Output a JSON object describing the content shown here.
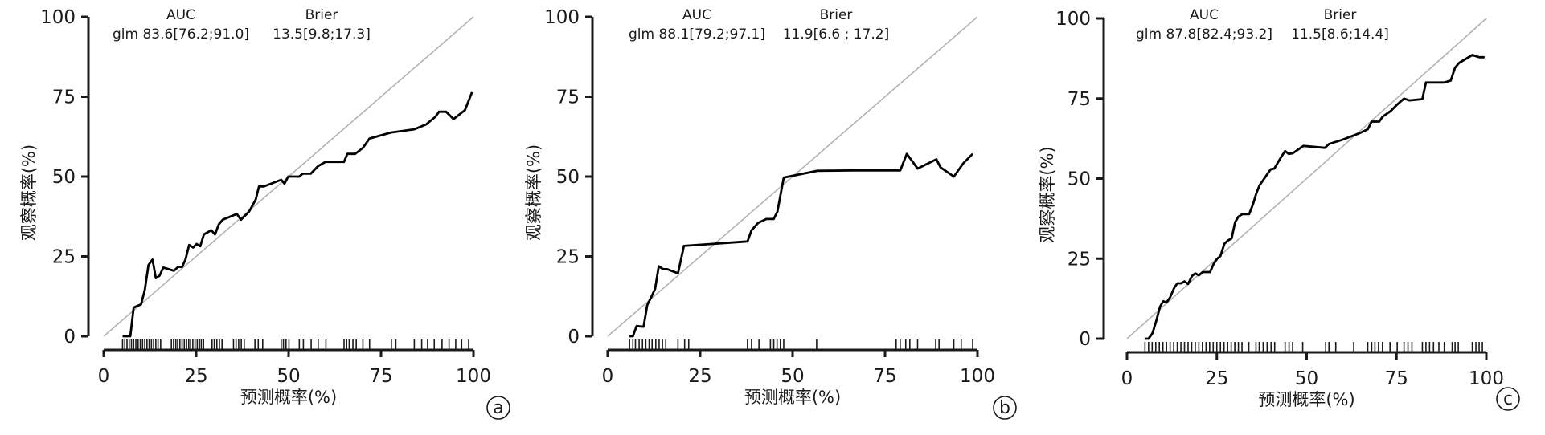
{
  "chart_data": [
    {
      "type": "line",
      "panel_label": "a",
      "xlabel": "预测概率(%)",
      "ylabel": "观察概率(%)",
      "xlim": [
        0,
        100
      ],
      "ylim": [
        0,
        100
      ],
      "xticks": [
        "0",
        "25",
        "50",
        "75",
        "100"
      ],
      "yticks": [
        "0",
        "25",
        "50",
        "75",
        "100"
      ],
      "grid": false,
      "reference_line": {
        "from": [
          0,
          0
        ],
        "to": [
          100,
          100
        ],
        "color": "#b3b3b3"
      },
      "annotation": {
        "auc_header": "AUC",
        "auc_text": "glm 83.6[76.2;91.0]",
        "brier_header": "Brier",
        "brier_text": "13.5[9.8;17.3]"
      },
      "series": [
        {
          "color": "#000000",
          "x": [
            5.1,
            7.2,
            8.1,
            10.1,
            11.1,
            12.1,
            13.2,
            14.1,
            15.1,
            16.1,
            19,
            20.1,
            21.2,
            22.1,
            23.1,
            24.2,
            25.1,
            26.1,
            27.1,
            29.1,
            30.1,
            31.1,
            32.2,
            36,
            37.1,
            39.3,
            41.1,
            42,
            43.3,
            48,
            48.9,
            49.9,
            52.9,
            53.8,
            56,
            58,
            60,
            65,
            65.9,
            68,
            70.1,
            71.9,
            77.7,
            84,
            87.2,
            89.7,
            90.7,
            92.6,
            94.6,
            97.7,
            99.6
          ],
          "y": [
            0,
            0,
            9,
            10,
            14.5,
            22.3,
            24,
            18.2,
            19,
            21.5,
            20.5,
            21.7,
            21.7,
            24,
            28.6,
            27.8,
            28.9,
            28.2,
            31.9,
            33.2,
            31.9,
            35,
            36.5,
            38.3,
            36.5,
            39,
            42.8,
            46.9,
            46.9,
            49,
            47.8,
            50,
            50,
            50.9,
            50.9,
            53.3,
            54.6,
            54.6,
            57.1,
            57.1,
            59,
            61.9,
            63.8,
            64.8,
            66.3,
            68.7,
            70.3,
            70.3,
            68,
            70.8,
            76.4
          ]
        }
      ],
      "rug": [
        5.1,
        5.7,
        6.3,
        6.9,
        7.5,
        8.1,
        8.7,
        9.3,
        9.9,
        10.5,
        11.1,
        11.7,
        12.3,
        12.9,
        13.5,
        14.1,
        14.7,
        15.4,
        18.3,
        18.9,
        19.5,
        20,
        20.6,
        21.2,
        21.8,
        22.4,
        23,
        23.5,
        24.1,
        24.7,
        25.3,
        25.9,
        26.4,
        27,
        29.3,
        29.9,
        30.6,
        31.3,
        32,
        35.1,
        35.8,
        36.5,
        37.2,
        38,
        40.9,
        41.8,
        43,
        48,
        48.6,
        49.3,
        50.1,
        52.9,
        54,
        56.1,
        58,
        60.1,
        65,
        65.7,
        66.4,
        67.4,
        68.3,
        70.1,
        71.9,
        77.8,
        79,
        84,
        86,
        87.6,
        89.4,
        91.5,
        93.4,
        95.2,
        96.8,
        98.7
      ]
    },
    {
      "type": "line",
      "panel_label": "b",
      "xlabel": "预测概率(%)",
      "ylabel": "观察概率(%)",
      "xlim": [
        0,
        100
      ],
      "ylim": [
        0,
        100
      ],
      "xticks": [
        "0",
        "25",
        "50",
        "75",
        "100"
      ],
      "yticks": [
        "0",
        "25",
        "50",
        "75",
        "100"
      ],
      "grid": false,
      "reference_line": {
        "from": [
          0,
          0
        ],
        "to": [
          100,
          100
        ],
        "color": "#b3b3b3"
      },
      "annotation": {
        "auc_header": "AUC",
        "auc_text": "glm 88.1[79.2;97.1]",
        "brier_header": "Brier",
        "brier_text": "11.9[6.6 ; 17.2]"
      },
      "series": [
        {
          "color": "#000000",
          "x": [
            5.9,
            6.8,
            7.8,
            9.7,
            10.7,
            11.6,
            12.8,
            13.8,
            15,
            16.1,
            19,
            20.6,
            37.8,
            38.9,
            40.7,
            42.9,
            44.9,
            45.9,
            47.6,
            56.7,
            66.1,
            79.1,
            80.9,
            83.8,
            88.9,
            90,
            93.6,
            96.2,
            98.7
          ],
          "y": [
            0,
            0,
            3.2,
            3,
            9.8,
            11.9,
            14.8,
            21.9,
            21,
            21,
            19.7,
            28.3,
            29.7,
            33.2,
            35.5,
            36.7,
            36.7,
            39,
            49.7,
            51.8,
            51.9,
            51.9,
            57.1,
            52.5,
            55.4,
            52.9,
            50,
            54.2,
            57.1
          ]
        }
      ],
      "rug": [
        5.9,
        6.8,
        7.5,
        8.5,
        9.4,
        10.3,
        11.2,
        12,
        13,
        13.9,
        14.8,
        15.7,
        19,
        20.8,
        21.9,
        37.8,
        38.9,
        40.9,
        44,
        44.9,
        45.8,
        46.7,
        47.6,
        56.5,
        78,
        79.1,
        80.6,
        81.7,
        83.8,
        88.7,
        89.6,
        93.6,
        95.6,
        98.7
      ]
    },
    {
      "type": "line",
      "panel_label": "c",
      "xlabel": "预测概率(%)",
      "ylabel": "观察概率(%)",
      "xlim": [
        0,
        100
      ],
      "ylim": [
        0,
        100
      ],
      "xticks": [
        "0",
        "25",
        "50",
        "75",
        "100"
      ],
      "yticks": [
        "0",
        "25",
        "50",
        "75",
        "100"
      ],
      "grid": false,
      "reference_line": {
        "from": [
          0,
          0
        ],
        "to": [
          100,
          100
        ],
        "color": "#b3b3b3"
      },
      "annotation": {
        "auc_header": "AUC",
        "auc_text": "glm 87.8[82.4;93.2]",
        "brier_header": "Brier",
        "brier_text": "11.5[8.6;14.4]"
      },
      "series": [
        {
          "color": "#000000",
          "x": [
            4.9,
            6,
            7.1,
            8.1,
            9.2,
            10.1,
            11,
            12,
            13.1,
            14,
            15.1,
            16,
            17,
            18.1,
            19,
            20,
            21.1,
            23.1,
            24.1,
            25.1,
            26,
            27.1,
            28,
            29.1,
            30.1,
            31,
            32.1,
            34,
            35.1,
            36,
            36.9,
            39,
            40,
            41,
            42,
            43,
            44,
            45,
            46.1,
            49.1,
            55.1,
            56.2,
            59.9,
            64.8,
            67,
            68.1,
            70.2,
            71.1,
            73.4,
            75.2,
            77.1,
            78.6,
            82.2,
            83.2,
            88.3,
            90.1,
            91.3,
            92.4,
            96.1,
            98,
            99.5
          ],
          "y": [
            0,
            0,
            1.7,
            5.4,
            10,
            11.7,
            11.3,
            12.9,
            15.8,
            17.3,
            17.3,
            17.9,
            17.1,
            19.6,
            20.4,
            19.8,
            20.8,
            20.8,
            23.3,
            25,
            25.8,
            29.6,
            30.6,
            31.3,
            36.4,
            38.1,
            38.9,
            38.9,
            42.1,
            45.4,
            47.9,
            51.3,
            52.9,
            53.1,
            55,
            56.9,
            58.6,
            57.7,
            57.9,
            60.2,
            59.6,
            60.8,
            62.1,
            64.2,
            65.4,
            67.8,
            67.8,
            69.3,
            71.1,
            73.1,
            75,
            74.4,
            74.8,
            80,
            80,
            80.6,
            84.6,
            86.1,
            88.6,
            87.9,
            87.9
          ]
        }
      ],
      "rug": [
        5,
        6,
        7,
        8,
        9,
        10,
        11,
        12,
        13,
        14,
        15,
        16,
        17,
        18,
        19,
        20,
        21,
        22,
        23,
        24,
        25,
        26,
        27,
        28,
        29,
        30,
        31,
        32,
        33.9,
        35.9,
        36.8,
        37.9,
        39,
        40.1,
        41.1,
        44,
        45.1,
        46.1,
        48.9,
        55.3,
        56.2,
        58.1,
        63.1,
        67,
        68.1,
        69,
        70,
        71.1,
        73.2,
        75.2,
        77.1,
        78.2,
        79.3,
        82.2,
        83.2,
        84.2,
        85.3,
        86.8,
        88.3,
        90.5,
        91.3,
        92.2,
        96.1,
        97.1,
        98,
        98.9
      ]
    }
  ]
}
